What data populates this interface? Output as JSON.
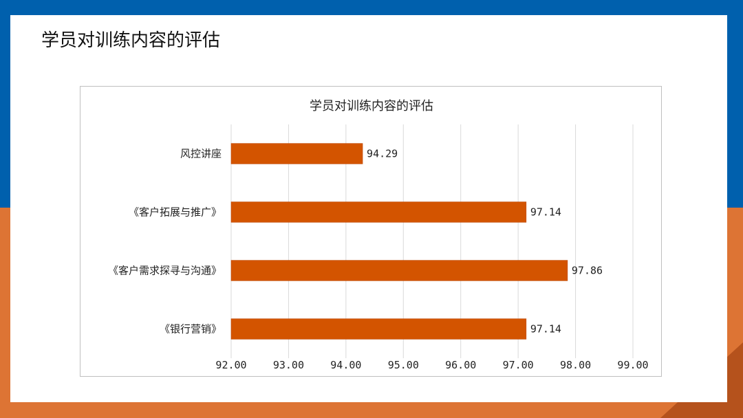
{
  "slide": {
    "title": "学员对训练内容的评估"
  },
  "colors": {
    "top_band": "#0060ad",
    "bottom_band": "#dd7434",
    "bar": "#d35400"
  },
  "chart_data": {
    "type": "bar",
    "orientation": "horizontal",
    "title": "学员对训练内容的评估",
    "categories": [
      "风控讲座",
      "《客户拓展与推广》",
      "《客户需求探寻与沟通》",
      "《银行营销》"
    ],
    "values": [
      94.29,
      97.14,
      97.86,
      97.14
    ],
    "value_labels": [
      "94.29",
      "97.14",
      "97.86",
      "97.14"
    ],
    "xlim": [
      92,
      99
    ],
    "x_ticks": [
      "92.00",
      "93.00",
      "94.00",
      "95.00",
      "96.00",
      "97.00",
      "98.00",
      "99.00"
    ],
    "grid": true,
    "legend": "none",
    "xlabel": "",
    "ylabel": ""
  }
}
